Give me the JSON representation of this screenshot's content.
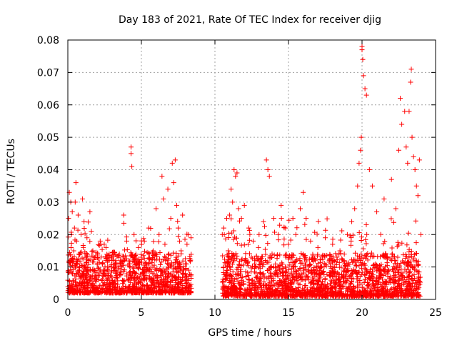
{
  "chart_data": {
    "type": "scatter",
    "title": "Day 183 of 2021, Rate Of TEC Index for receiver djig",
    "xlabel": "GPS time / hours",
    "ylabel": "ROTI / TECUs",
    "xlim": [
      0,
      25
    ],
    "ylim": [
      0,
      0.08
    ],
    "xticks": [
      0,
      5,
      10,
      15,
      20,
      25
    ],
    "xtick_labels": [
      "0",
      "5",
      "10",
      "15",
      "20",
      "25"
    ],
    "yticks": [
      0,
      0.01,
      0.02,
      0.03,
      0.04,
      0.05,
      0.06,
      0.07,
      0.08
    ],
    "ytick_labels": [
      "0",
      "0.01",
      "0.02",
      "0.03",
      "0.04",
      "0.05",
      "0.06",
      "0.07",
      "0.08"
    ],
    "grid": true,
    "marker": "+",
    "color": "#ff0000",
    "series": [
      {
        "name": "ROTI",
        "x": [
          0.05,
          0.1,
          0.15,
          0.2,
          0.25,
          0.3,
          0.3,
          0.4,
          0.45,
          0.5,
          0.55,
          0.6,
          0.6,
          0.7,
          0.75,
          0.8,
          0.9,
          1.0,
          1.05,
          1.1,
          1.2,
          1.3,
          1.4,
          1.5,
          1.6,
          1.7,
          1.8,
          1.9,
          2.0,
          2.2,
          2.4,
          2.6,
          2.8,
          3.0,
          3.2,
          3.5,
          3.8,
          4.0,
          4.2,
          4.3,
          4.3,
          4.35,
          4.5,
          4.8,
          5.0,
          5.2,
          5.5,
          5.8,
          6.0,
          6.2,
          6.4,
          6.5,
          6.6,
          6.8,
          7.0,
          7.1,
          7.2,
          7.3,
          7.4,
          7.5,
          7.6,
          7.7,
          7.8,
          8.0,
          8.1,
          8.2,
          8.3,
          10.5,
          10.6,
          10.7,
          10.8,
          10.9,
          11.0,
          11.1,
          11.2,
          11.3,
          11.4,
          11.5,
          11.6,
          11.8,
          12.0,
          12.3,
          12.6,
          13.0,
          13.3,
          13.5,
          13.6,
          13.7,
          14.0,
          14.3,
          14.5,
          14.8,
          15.0,
          15.3,
          15.5,
          15.8,
          16.0,
          16.2,
          16.5,
          17.0,
          17.5,
          18.0,
          18.5,
          19.0,
          19.3,
          19.5,
          19.7,
          19.8,
          19.9,
          19.95,
          20.0,
          20.0,
          20.05,
          20.1,
          20.2,
          20.3,
          20.5,
          20.7,
          21.0,
          21.5,
          22.0,
          22.3,
          22.5,
          22.6,
          22.7,
          22.9,
          23.0,
          23.1,
          23.2,
          23.3,
          23.35,
          23.4,
          23.5,
          23.6,
          23.7,
          23.8,
          23.9,
          24.0
        ],
        "y": [
          0.025,
          0.033,
          0.012,
          0.03,
          0.02,
          0.027,
          0.008,
          0.015,
          0.022,
          0.03,
          0.036,
          0.018,
          0.011,
          0.026,
          0.014,
          0.009,
          0.02,
          0.031,
          0.016,
          0.024,
          0.01,
          0.019,
          0.012,
          0.027,
          0.021,
          0.015,
          0.009,
          0.013,
          0.011,
          0.018,
          0.008,
          0.016,
          0.01,
          0.012,
          0.009,
          0.014,
          0.026,
          0.018,
          0.011,
          0.047,
          0.045,
          0.041,
          0.02,
          0.016,
          0.013,
          0.018,
          0.022,
          0.015,
          0.028,
          0.02,
          0.038,
          0.031,
          0.017,
          0.034,
          0.025,
          0.042,
          0.036,
          0.043,
          0.029,
          0.022,
          0.018,
          0.015,
          0.026,
          0.011,
          0.017,
          0.02,
          0.012,
          0.02,
          0.022,
          0.011,
          0.025,
          0.015,
          0.026,
          0.034,
          0.03,
          0.04,
          0.038,
          0.039,
          0.028,
          0.025,
          0.029,
          0.022,
          0.018,
          0.02,
          0.024,
          0.043,
          0.04,
          0.038,
          0.025,
          0.02,
          0.029,
          0.022,
          0.017,
          0.025,
          0.02,
          0.028,
          0.033,
          0.025,
          0.018,
          0.016,
          0.019,
          0.017,
          0.015,
          0.02,
          0.024,
          0.028,
          0.035,
          0.042,
          0.046,
          0.05,
          0.078,
          0.077,
          0.074,
          0.069,
          0.065,
          0.063,
          0.04,
          0.035,
          0.027,
          0.031,
          0.037,
          0.028,
          0.046,
          0.062,
          0.054,
          0.058,
          0.047,
          0.042,
          0.058,
          0.067,
          0.071,
          0.05,
          0.044,
          0.04,
          0.035,
          0.032,
          0.043,
          0.02
        ]
      }
    ],
    "dense_band": {
      "description": "dense background scatter of low ROTI values",
      "segments": [
        {
          "x_start": 0.0,
          "x_end": 8.4,
          "y_min": 0.002,
          "y_max": 0.025
        },
        {
          "x_start": 10.5,
          "x_end": 24.0,
          "y_min": 0.001,
          "y_max": 0.025
        }
      ]
    }
  }
}
